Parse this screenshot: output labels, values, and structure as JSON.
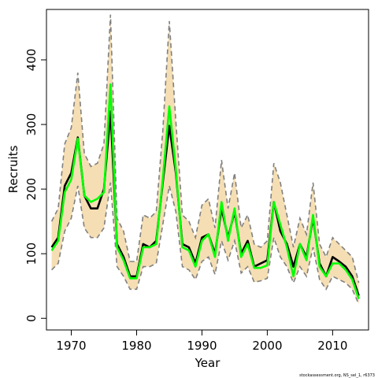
{
  "chart_data": {
    "type": "line",
    "xlabel": "Year",
    "ylabel": "Recruits",
    "xlim": [
      1966.2,
      2015.5
    ],
    "ylim": [
      -18,
      478
    ],
    "x_ticks": [
      1970,
      1980,
      1990,
      2000,
      2010
    ],
    "y_ticks": [
      0,
      100,
      200,
      300,
      400
    ],
    "grid": false,
    "legend": "none",
    "footnote": "stockassessment.org, NS_sel_1, r6373",
    "x": [
      1967,
      1968,
      1969,
      1970,
      1971,
      1972,
      1973,
      1974,
      1975,
      1976,
      1977,
      1978,
      1979,
      1980,
      1981,
      1982,
      1983,
      1984,
      1985,
      1986,
      1987,
      1988,
      1989,
      1990,
      1991,
      1992,
      1993,
      1994,
      1995,
      1996,
      1997,
      1998,
      1999,
      2000,
      2001,
      2002,
      2003,
      2004,
      2005,
      2006,
      2007,
      2008,
      2009,
      2010,
      2011,
      2012,
      2013,
      2014
    ],
    "series": [
      {
        "values": [
          110,
          125,
          205,
          225,
          280,
          190,
          170,
          170,
          200,
          320,
          115,
          95,
          65,
          65,
          115,
          110,
          120,
          210,
          298,
          225,
          115,
          110,
          85,
          125,
          130,
          100,
          170,
          125,
          165,
          100,
          120,
          80,
          85,
          90,
          180,
          135,
          115,
          80,
          115,
          95,
          155,
          85,
          65,
          95,
          88,
          80,
          65,
          35
        ],
        "color": "#000000"
      },
      {
        "values": [
          105,
          120,
          195,
          215,
          278,
          190,
          180,
          185,
          195,
          362,
          110,
          90,
          62,
          62,
          110,
          110,
          115,
          215,
          328,
          230,
          110,
          105,
          80,
          120,
          130,
          95,
          180,
          120,
          170,
          95,
          115,
          78,
          78,
          82,
          180,
          145,
          110,
          65,
          115,
          90,
          160,
          80,
          65,
          85,
          85,
          75,
          60,
          30
        ],
        "color": "#00ff00"
      }
    ],
    "band": {
      "upper": [
        150,
        170,
        270,
        295,
        380,
        255,
        235,
        240,
        270,
        470,
        155,
        135,
        88,
        88,
        160,
        155,
        165,
        290,
        460,
        305,
        160,
        150,
        125,
        175,
        185,
        140,
        245,
        170,
        225,
        140,
        160,
        115,
        110,
        120,
        240,
        210,
        160,
        110,
        155,
        130,
        210,
        115,
        95,
        125,
        115,
        105,
        95,
        55
      ],
      "lower": [
        75,
        85,
        135,
        155,
        205,
        140,
        125,
        125,
        140,
        210,
        80,
        65,
        45,
        45,
        80,
        80,
        85,
        145,
        205,
        165,
        80,
        75,
        60,
        88,
        95,
        68,
        120,
        90,
        120,
        70,
        80,
        56,
        58,
        62,
        125,
        95,
        80,
        55,
        80,
        65,
        110,
        60,
        45,
        65,
        60,
        55,
        45,
        22
      ],
      "color": "#f5deb3",
      "dash_color": "#808080"
    }
  }
}
